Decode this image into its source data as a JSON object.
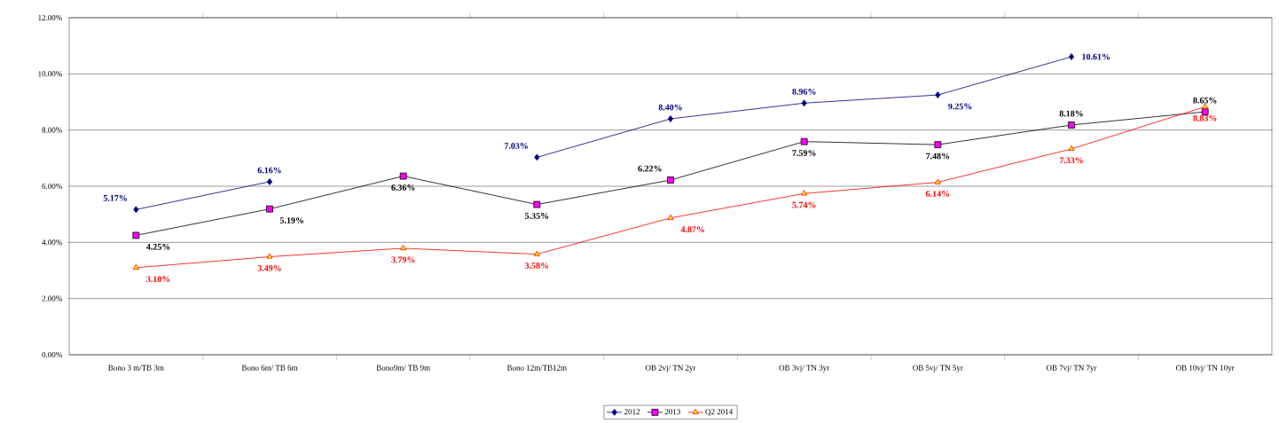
{
  "chart_data": {
    "type": "line",
    "categories": [
      "Bono 3 m/TB 3m",
      "Bono 6m/ TB 6m",
      "Bono9m/ TB 9m",
      "Bono 12m/TB12m",
      "OB 2vj/ TN 2yr",
      "OB 3vj/ TN 3yr",
      "OB 5vj/ TN 5yr",
      "OB 7vj/ TN 7yr",
      "OB 10vj/ TN 10yr"
    ],
    "series": [
      {
        "name": "2012",
        "color": "#000080",
        "marker": "diamond",
        "values": [
          5.17,
          6.16,
          null,
          7.03,
          8.4,
          8.96,
          9.25,
          10.61,
          null
        ],
        "value_labels": [
          "5.17%",
          "6.16%",
          null,
          "7.03%",
          "8.40%",
          "8.96%",
          "9.25%",
          "10.61%",
          null
        ]
      },
      {
        "name": "2013",
        "color": "#000000",
        "marker": "square",
        "values": [
          4.25,
          5.19,
          6.36,
          5.35,
          6.22,
          7.59,
          7.48,
          8.18,
          8.65
        ],
        "value_labels": [
          "4.25%",
          "5.19%",
          "6.36%",
          "5.35%",
          "6.22%",
          "7.59%",
          "7.48%",
          "8.18%",
          "8.65%"
        ]
      },
      {
        "name": "Q2 2014",
        "color": "#ff0000",
        "marker": "triangle",
        "values": [
          3.1,
          3.49,
          3.79,
          3.58,
          4.87,
          5.74,
          6.14,
          7.33,
          8.83
        ],
        "value_labels": [
          "3.10%",
          "3.49%",
          "3.79%",
          "3.58%",
          "4.87%",
          "5.74%",
          "6.14%",
          "7.33%",
          "8.83%"
        ]
      }
    ],
    "ylim": [
      0,
      12
    ],
    "yticks": [
      {
        "value": 0,
        "label": "0.00%"
      },
      {
        "value": 2,
        "label": "2.00%"
      },
      {
        "value": 4,
        "label": "4.00%"
      },
      {
        "value": 6,
        "label": "6.00%"
      },
      {
        "value": 8,
        "label": "8.00%"
      },
      {
        "value": 10,
        "label": "10.00%"
      },
      {
        "value": 12,
        "label": "12.00%"
      }
    ],
    "grid": "y",
    "legend": "bottom",
    "line_style": "solid"
  }
}
